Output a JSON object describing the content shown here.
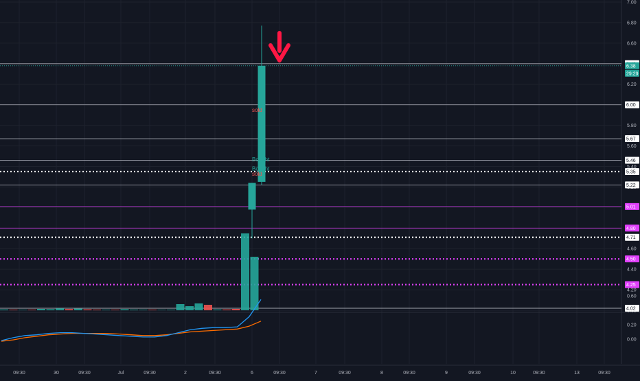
{
  "theme": {
    "background": "#131722",
    "grid": "#1e222d",
    "axis_text": "#b2b5be",
    "up_color": "#26a69a",
    "down_color": "#ef5350",
    "white_line": "#d1d4dc",
    "magenta": "#e040fb",
    "arrow_red": "#ff1744",
    "macd_line": "#2196f3",
    "signal_line": "#ff6d00"
  },
  "price_axis": {
    "ticks": [
      "7.00",
      "6.80",
      "6.60",
      "6.40",
      "6.20",
      "6.00",
      "5.80",
      "5.60",
      "5.40",
      "5.20",
      "5.00",
      "4.80",
      "4.60",
      "4.40",
      "4.20",
      "4.00"
    ]
  },
  "osc_axis": {
    "ticks": [
      "0.60",
      "0.40",
      "0.20",
      "0.00"
    ]
  },
  "time_axis": {
    "labels": [
      "09:30",
      "30",
      "09:30",
      "Jul",
      "09:30",
      "2",
      "09:30",
      "6",
      "09:30",
      "7",
      "09:30",
      "8",
      "09:30",
      "9",
      "09:30",
      "10",
      "09:30",
      "13",
      "09:30"
    ]
  },
  "horizontal_lines": [
    {
      "price": 6.4,
      "label": "6.40",
      "color": "#d1d4dc",
      "style": "solid",
      "badge": "white"
    },
    {
      "price": 6.0,
      "label": "6.00",
      "color": "#d1d4dc",
      "style": "solid",
      "badge": "white"
    },
    {
      "price": 5.67,
      "label": "5.67",
      "color": "#d1d4dc",
      "style": "solid",
      "badge": "white"
    },
    {
      "price": 5.46,
      "label": "5.46",
      "color": "#d1d4dc",
      "style": "solid",
      "badge": "white"
    },
    {
      "price": 5.35,
      "label": "5.35",
      "color": "#ffffff",
      "style": "dotted",
      "badge": "white"
    },
    {
      "price": 5.22,
      "label": "5.22",
      "color": "#d1d4dc",
      "style": "solid",
      "badge": "white"
    },
    {
      "price": 5.01,
      "label": "5.01",
      "color": "#e040fb",
      "style": "solid",
      "badge": "magenta"
    },
    {
      "price": 4.8,
      "label": "4.80",
      "color": "#e040fb",
      "style": "solid",
      "badge": "magenta"
    },
    {
      "price": 4.71,
      "label": "4.71",
      "color": "#ffffff",
      "style": "dotted",
      "badge": "white"
    },
    {
      "price": 4.5,
      "label": "4.50",
      "color": "#e040fb",
      "style": "dotted",
      "badge": "magenta"
    },
    {
      "price": 4.25,
      "label": "4.25",
      "color": "#e040fb",
      "style": "dotted",
      "badge": "magenta"
    },
    {
      "price": 4.02,
      "label": "4.02",
      "color": "#d1d4dc",
      "style": "solid",
      "badge": "white"
    }
  ],
  "last_price": {
    "value": "6.38",
    "countdown": "29:29"
  },
  "candles": [
    {
      "open": 4.98,
      "high": 5.24,
      "low": 4.7,
      "close": 5.24
    },
    {
      "open": 5.25,
      "high": 6.77,
      "low": 5.22,
      "close": 6.38
    }
  ],
  "annotations": [
    {
      "text": "sold",
      "price": 5.95,
      "color": "#ef5350"
    },
    {
      "text": "Bought",
      "price": 5.47,
      "color": "#26a69a"
    },
    {
      "text": "Bought",
      "price": 5.38,
      "color": "#26a69a"
    },
    {
      "text": "sold",
      "price": 5.33,
      "color": "#ef5350"
    }
  ],
  "volume_bars": [
    {
      "h": 0.006,
      "c": "up"
    },
    {
      "h": 0.004,
      "c": "down"
    },
    {
      "h": 0.003,
      "c": "up"
    },
    {
      "h": 0.004,
      "c": "down"
    },
    {
      "h": 0.01,
      "c": "up"
    },
    {
      "h": 0.008,
      "c": "up"
    },
    {
      "h": 0.014,
      "c": "up"
    },
    {
      "h": 0.009,
      "c": "down"
    },
    {
      "h": 0.012,
      "c": "up"
    },
    {
      "h": 0.007,
      "c": "down"
    },
    {
      "h": 0.005,
      "c": "down"
    },
    {
      "h": 0.004,
      "c": "up"
    },
    {
      "h": 0.004,
      "c": "down"
    },
    {
      "h": 0.008,
      "c": "up"
    },
    {
      "h": 0.005,
      "c": "up"
    },
    {
      "h": 0.004,
      "c": "up"
    },
    {
      "h": 0.004,
      "c": "down"
    },
    {
      "h": 0.003,
      "c": "up"
    },
    {
      "h": 0.004,
      "c": "up"
    },
    {
      "h": 0.045,
      "c": "up"
    },
    {
      "h": 0.03,
      "c": "up"
    },
    {
      "h": 0.05,
      "c": "up"
    },
    {
      "h": 0.04,
      "c": "down"
    },
    {
      "h": 0.006,
      "c": "up"
    },
    {
      "h": 0.006,
      "c": "down"
    },
    {
      "h": 0.01,
      "c": "down"
    },
    {
      "h": 0.56,
      "c": "up"
    },
    {
      "h": 0.39,
      "c": "up"
    }
  ],
  "macd": [
    -0.02,
    0.02,
    0.05,
    0.06,
    0.08,
    0.09,
    0.09,
    0.08,
    0.07,
    0.06,
    0.05,
    0.04,
    0.03,
    0.03,
    0.05,
    0.09,
    0.13,
    0.15,
    0.16,
    0.16,
    0.17,
    0.31,
    0.55
  ],
  "signal": [
    -0.03,
    -0.01,
    0.02,
    0.04,
    0.06,
    0.07,
    0.08,
    0.08,
    0.08,
    0.08,
    0.07,
    0.06,
    0.05,
    0.05,
    0.06,
    0.08,
    0.1,
    0.11,
    0.12,
    0.13,
    0.14,
    0.18,
    0.25
  ]
}
